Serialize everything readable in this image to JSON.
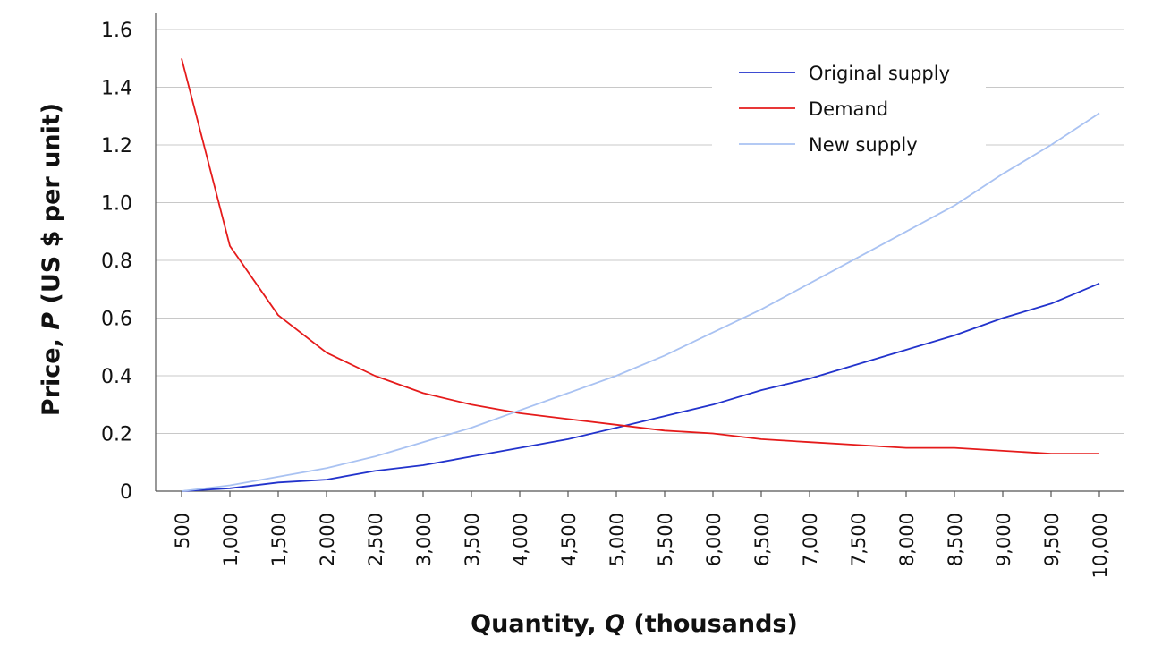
{
  "chart_data": {
    "type": "line",
    "xlabel_parts": [
      "Quantity, ",
      "Q",
      " (thousands)"
    ],
    "ylabel_parts": [
      "Price, ",
      "P",
      " (US $ per unit)"
    ],
    "x": [
      500,
      1000,
      1500,
      2000,
      2500,
      3000,
      3500,
      4000,
      4500,
      5000,
      5500,
      6000,
      6500,
      7000,
      7500,
      8000,
      8500,
      9000,
      9500,
      10000
    ],
    "x_tick_labels": [
      "500",
      "1,000",
      "1,500",
      "2,000",
      "2,500",
      "3,000",
      "3,500",
      "4,000",
      "4,500",
      "5,000",
      "5,500",
      "6,000",
      "6,500",
      "7,000",
      "7,500",
      "8,000",
      "8,500",
      "9,000",
      "9,500",
      "10,000"
    ],
    "ylim": [
      0,
      1.6
    ],
    "y_ticks": [
      0,
      0.2,
      0.4,
      0.6,
      0.8,
      1.0,
      1.2,
      1.4,
      1.6
    ],
    "y_tick_labels": [
      "0",
      "0.2",
      "0.4",
      "0.6",
      "0.8",
      "1.0",
      "1.2",
      "1.4",
      "1.6"
    ],
    "grid": true,
    "legend_position": "top-right",
    "series": [
      {
        "name": "Original supply",
        "color": "#2233cc",
        "values": [
          0.0,
          0.01,
          0.03,
          0.04,
          0.07,
          0.09,
          0.12,
          0.15,
          0.18,
          0.22,
          0.26,
          0.3,
          0.35,
          0.39,
          0.44,
          0.49,
          0.54,
          0.6,
          0.65,
          0.72
        ]
      },
      {
        "name": "Demand",
        "color": "#e51b1b",
        "values": [
          1.5,
          0.85,
          0.61,
          0.48,
          0.4,
          0.34,
          0.3,
          0.27,
          0.25,
          0.23,
          0.21,
          0.2,
          0.18,
          0.17,
          0.16,
          0.15,
          0.15,
          0.14,
          0.13,
          0.13
        ]
      },
      {
        "name": "New supply",
        "color": "#a9c2f2",
        "values": [
          0.0,
          0.02,
          0.05,
          0.08,
          0.12,
          0.17,
          0.22,
          0.28,
          0.34,
          0.4,
          0.47,
          0.55,
          0.63,
          0.72,
          0.81,
          0.9,
          0.99,
          1.1,
          1.2,
          1.31
        ]
      }
    ]
  }
}
